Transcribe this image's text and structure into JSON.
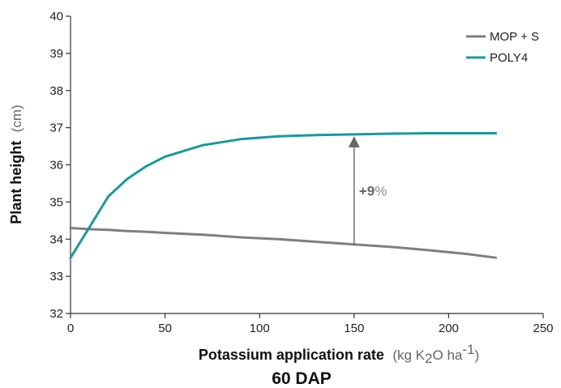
{
  "chart_data": {
    "type": "line",
    "title": "60 DAP",
    "xlabel": {
      "bold": "Potassium application rate",
      "unit_open": "(kg K",
      "unit_sub": "2",
      "unit_mid": "O ha",
      "unit_sup": "-1",
      "unit_close": ")"
    },
    "ylabel": {
      "bold": "Plant height",
      "unit": "(cm)"
    },
    "xlim": [
      0,
      250
    ],
    "ylim": [
      32,
      40
    ],
    "xticks": [
      0,
      50,
      100,
      150,
      200,
      250
    ],
    "yticks": [
      32,
      33,
      34,
      35,
      36,
      37,
      38,
      39,
      40
    ],
    "legend": "top-right",
    "series": [
      {
        "name": "MOP + S",
        "color": "#7f7f7f",
        "x": [
          0,
          10,
          20,
          30,
          40,
          50,
          70,
          90,
          110,
          130,
          150,
          170,
          190,
          210,
          225
        ],
        "y": [
          34.3,
          34.27,
          34.25,
          34.22,
          34.2,
          34.17,
          34.12,
          34.05,
          34.0,
          33.93,
          33.86,
          33.79,
          33.7,
          33.6,
          33.5
        ]
      },
      {
        "name": "POLY4",
        "color": "#1a9a9a",
        "x": [
          0,
          10,
          20,
          30,
          40,
          50,
          70,
          90,
          110,
          130,
          150,
          170,
          190,
          210,
          225
        ],
        "y": [
          33.5,
          34.32,
          35.15,
          35.62,
          35.96,
          36.22,
          36.53,
          36.69,
          36.77,
          36.8,
          36.82,
          36.84,
          36.85,
          36.85,
          36.85
        ]
      }
    ],
    "annotations": [
      {
        "type": "arrow",
        "x": 150,
        "y_from": 33.85,
        "y_to": 36.75,
        "label_bold": "+9",
        "label_light": "%"
      }
    ]
  }
}
